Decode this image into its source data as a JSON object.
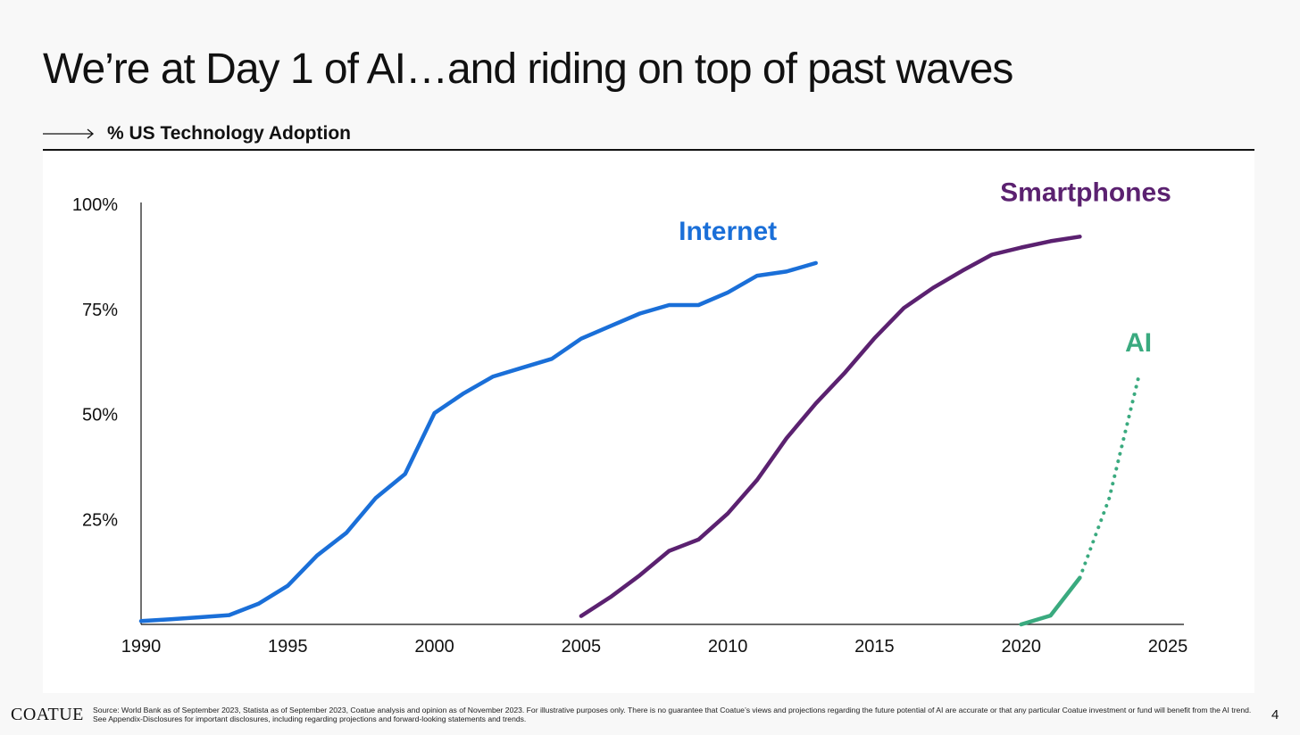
{
  "slide": {
    "title": "We’re at Day 1 of AI…and riding on top of past waves",
    "subtitle": "% US Technology Adoption",
    "page_number": "4"
  },
  "footer": {
    "logo": "COATUE",
    "source": "Source: World Bank as of September 2023, Statista as of September 2023, Coatue analysis and opinion as of November 2023. For illustrative purposes only. There is no guarantee that Coatue’s views and projections regarding the future potential of AI are accurate or that any particular Coatue investment or fund will benefit from the AI trend. See Appendix-Disclosures for important disclosures, including regarding projections and forward-looking statements and trends."
  },
  "chart_data": {
    "type": "line",
    "title": "% US Technology Adoption",
    "xlabel": "",
    "ylabel": "",
    "xlim": [
      1990,
      2025
    ],
    "ylim": [
      0,
      100
    ],
    "x_ticks": [
      1990,
      1995,
      2000,
      2005,
      2010,
      2015,
      2020,
      2025
    ],
    "x_tick_labels": [
      "1990",
      "1995",
      "2000",
      "2005",
      "2010",
      "2015",
      "2020",
      "2025"
    ],
    "y_ticks": [
      25,
      50,
      75,
      100
    ],
    "y_tick_labels": [
      "25%",
      "50%",
      "75%",
      "100%"
    ],
    "grid": false,
    "series": [
      {
        "name": "Internet",
        "color": "#1a6fd8",
        "style": "solid",
        "x": [
          1990,
          1991,
          1992,
          1993,
          1994,
          1995,
          1996,
          1997,
          1998,
          1999,
          2000,
          2001,
          2002,
          2003,
          2004,
          2005,
          2006,
          2007,
          2008,
          2009,
          2010,
          2011,
          2012,
          2013
        ],
        "y": [
          0.8,
          1.2,
          1.7,
          2.2,
          4.9,
          9.2,
          16.4,
          21.8,
          30.1,
          35.8,
          50.3,
          55.0,
          59.0,
          61.1,
          63.2,
          68.0,
          71.0,
          74.0,
          76.0,
          76.0,
          79.0,
          83.0,
          84.0,
          86.0
        ]
      },
      {
        "name": "Smartphones",
        "color": "#5b2170",
        "style": "solid",
        "x": [
          2005,
          2006,
          2007,
          2008,
          2009,
          2010,
          2011,
          2012,
          2013,
          2014,
          2015,
          2016,
          2017,
          2018,
          2019,
          2020,
          2021,
          2022
        ],
        "y": [
          2.0,
          6.5,
          11.7,
          17.5,
          20.2,
          26.4,
          34.4,
          44.3,
          52.6,
          60.0,
          68.1,
          75.3,
          80.1,
          84.2,
          88.0,
          89.7,
          91.2,
          92.3
        ]
      },
      {
        "name": "AI",
        "color": "#3aaa7f",
        "style": "solid",
        "x": [
          2020,
          2021,
          2022
        ],
        "y": [
          0.0,
          2.1,
          11.1
        ]
      },
      {
        "name": "AI (projected)",
        "color": "#3aaa7f",
        "style": "dotted",
        "x": [
          2022,
          2023,
          2024
        ],
        "y": [
          11.1,
          30.0,
          58.8
        ]
      }
    ],
    "annotations": [
      {
        "text": "Internet",
        "color": "#1a6fd8"
      },
      {
        "text": "Smartphones",
        "color": "#5b2170"
      },
      {
        "text": "AI",
        "color": "#3aaa7f"
      }
    ]
  }
}
